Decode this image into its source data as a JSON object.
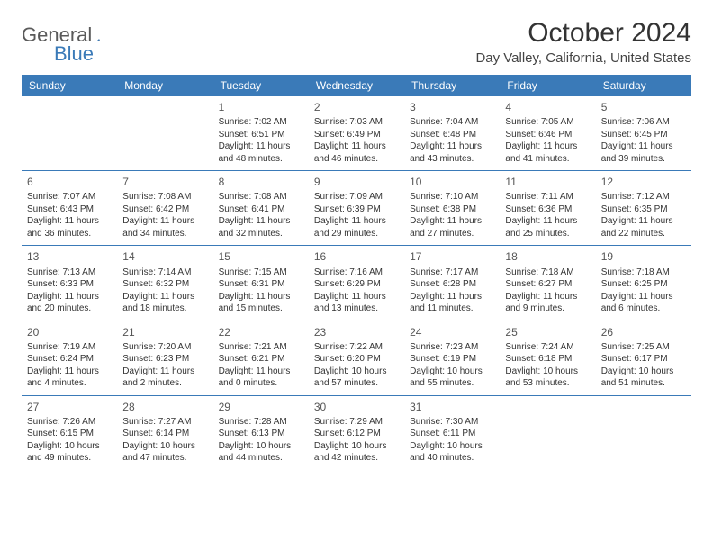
{
  "logo": {
    "word1": "General",
    "word2": "Blue"
  },
  "header": {
    "month_title": "October 2024",
    "location": "Day Valley, California, United States"
  },
  "colors": {
    "header_bg": "#3a7ab8",
    "header_fg": "#ffffff",
    "divider": "#3a7ab8",
    "logo_gray": "#5a5a5a",
    "logo_blue": "#3a7ab8"
  },
  "weekdays": [
    "Sunday",
    "Monday",
    "Tuesday",
    "Wednesday",
    "Thursday",
    "Friday",
    "Saturday"
  ],
  "weeks": [
    [
      null,
      null,
      {
        "n": "1",
        "sr": "Sunrise: 7:02 AM",
        "ss": "Sunset: 6:51 PM",
        "d1": "Daylight: 11 hours",
        "d2": "and 48 minutes."
      },
      {
        "n": "2",
        "sr": "Sunrise: 7:03 AM",
        "ss": "Sunset: 6:49 PM",
        "d1": "Daylight: 11 hours",
        "d2": "and 46 minutes."
      },
      {
        "n": "3",
        "sr": "Sunrise: 7:04 AM",
        "ss": "Sunset: 6:48 PM",
        "d1": "Daylight: 11 hours",
        "d2": "and 43 minutes."
      },
      {
        "n": "4",
        "sr": "Sunrise: 7:05 AM",
        "ss": "Sunset: 6:46 PM",
        "d1": "Daylight: 11 hours",
        "d2": "and 41 minutes."
      },
      {
        "n": "5",
        "sr": "Sunrise: 7:06 AM",
        "ss": "Sunset: 6:45 PM",
        "d1": "Daylight: 11 hours",
        "d2": "and 39 minutes."
      }
    ],
    [
      {
        "n": "6",
        "sr": "Sunrise: 7:07 AM",
        "ss": "Sunset: 6:43 PM",
        "d1": "Daylight: 11 hours",
        "d2": "and 36 minutes."
      },
      {
        "n": "7",
        "sr": "Sunrise: 7:08 AM",
        "ss": "Sunset: 6:42 PM",
        "d1": "Daylight: 11 hours",
        "d2": "and 34 minutes."
      },
      {
        "n": "8",
        "sr": "Sunrise: 7:08 AM",
        "ss": "Sunset: 6:41 PM",
        "d1": "Daylight: 11 hours",
        "d2": "and 32 minutes."
      },
      {
        "n": "9",
        "sr": "Sunrise: 7:09 AM",
        "ss": "Sunset: 6:39 PM",
        "d1": "Daylight: 11 hours",
        "d2": "and 29 minutes."
      },
      {
        "n": "10",
        "sr": "Sunrise: 7:10 AM",
        "ss": "Sunset: 6:38 PM",
        "d1": "Daylight: 11 hours",
        "d2": "and 27 minutes."
      },
      {
        "n": "11",
        "sr": "Sunrise: 7:11 AM",
        "ss": "Sunset: 6:36 PM",
        "d1": "Daylight: 11 hours",
        "d2": "and 25 minutes."
      },
      {
        "n": "12",
        "sr": "Sunrise: 7:12 AM",
        "ss": "Sunset: 6:35 PM",
        "d1": "Daylight: 11 hours",
        "d2": "and 22 minutes."
      }
    ],
    [
      {
        "n": "13",
        "sr": "Sunrise: 7:13 AM",
        "ss": "Sunset: 6:33 PM",
        "d1": "Daylight: 11 hours",
        "d2": "and 20 minutes."
      },
      {
        "n": "14",
        "sr": "Sunrise: 7:14 AM",
        "ss": "Sunset: 6:32 PM",
        "d1": "Daylight: 11 hours",
        "d2": "and 18 minutes."
      },
      {
        "n": "15",
        "sr": "Sunrise: 7:15 AM",
        "ss": "Sunset: 6:31 PM",
        "d1": "Daylight: 11 hours",
        "d2": "and 15 minutes."
      },
      {
        "n": "16",
        "sr": "Sunrise: 7:16 AM",
        "ss": "Sunset: 6:29 PM",
        "d1": "Daylight: 11 hours",
        "d2": "and 13 minutes."
      },
      {
        "n": "17",
        "sr": "Sunrise: 7:17 AM",
        "ss": "Sunset: 6:28 PM",
        "d1": "Daylight: 11 hours",
        "d2": "and 11 minutes."
      },
      {
        "n": "18",
        "sr": "Sunrise: 7:18 AM",
        "ss": "Sunset: 6:27 PM",
        "d1": "Daylight: 11 hours",
        "d2": "and 9 minutes."
      },
      {
        "n": "19",
        "sr": "Sunrise: 7:18 AM",
        "ss": "Sunset: 6:25 PM",
        "d1": "Daylight: 11 hours",
        "d2": "and 6 minutes."
      }
    ],
    [
      {
        "n": "20",
        "sr": "Sunrise: 7:19 AM",
        "ss": "Sunset: 6:24 PM",
        "d1": "Daylight: 11 hours",
        "d2": "and 4 minutes."
      },
      {
        "n": "21",
        "sr": "Sunrise: 7:20 AM",
        "ss": "Sunset: 6:23 PM",
        "d1": "Daylight: 11 hours",
        "d2": "and 2 minutes."
      },
      {
        "n": "22",
        "sr": "Sunrise: 7:21 AM",
        "ss": "Sunset: 6:21 PM",
        "d1": "Daylight: 11 hours",
        "d2": "and 0 minutes."
      },
      {
        "n": "23",
        "sr": "Sunrise: 7:22 AM",
        "ss": "Sunset: 6:20 PM",
        "d1": "Daylight: 10 hours",
        "d2": "and 57 minutes."
      },
      {
        "n": "24",
        "sr": "Sunrise: 7:23 AM",
        "ss": "Sunset: 6:19 PM",
        "d1": "Daylight: 10 hours",
        "d2": "and 55 minutes."
      },
      {
        "n": "25",
        "sr": "Sunrise: 7:24 AM",
        "ss": "Sunset: 6:18 PM",
        "d1": "Daylight: 10 hours",
        "d2": "and 53 minutes."
      },
      {
        "n": "26",
        "sr": "Sunrise: 7:25 AM",
        "ss": "Sunset: 6:17 PM",
        "d1": "Daylight: 10 hours",
        "d2": "and 51 minutes."
      }
    ],
    [
      {
        "n": "27",
        "sr": "Sunrise: 7:26 AM",
        "ss": "Sunset: 6:15 PM",
        "d1": "Daylight: 10 hours",
        "d2": "and 49 minutes."
      },
      {
        "n": "28",
        "sr": "Sunrise: 7:27 AM",
        "ss": "Sunset: 6:14 PM",
        "d1": "Daylight: 10 hours",
        "d2": "and 47 minutes."
      },
      {
        "n": "29",
        "sr": "Sunrise: 7:28 AM",
        "ss": "Sunset: 6:13 PM",
        "d1": "Daylight: 10 hours",
        "d2": "and 44 minutes."
      },
      {
        "n": "30",
        "sr": "Sunrise: 7:29 AM",
        "ss": "Sunset: 6:12 PM",
        "d1": "Daylight: 10 hours",
        "d2": "and 42 minutes."
      },
      {
        "n": "31",
        "sr": "Sunrise: 7:30 AM",
        "ss": "Sunset: 6:11 PM",
        "d1": "Daylight: 10 hours",
        "d2": "and 40 minutes."
      },
      null,
      null
    ]
  ]
}
